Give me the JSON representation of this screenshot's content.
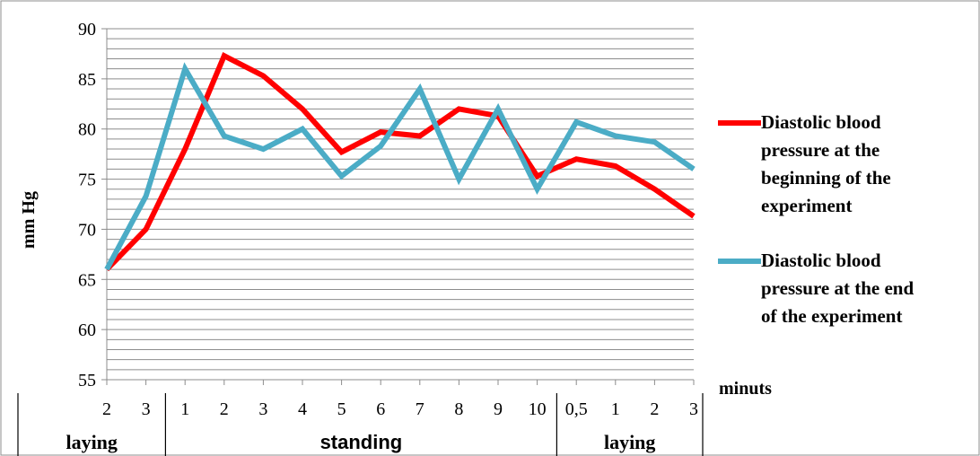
{
  "chart_data": {
    "type": "line",
    "ylabel": "mm Hg",
    "xlabel": "minuts",
    "ylim": [
      55,
      90
    ],
    "yticks": [
      55,
      60,
      65,
      70,
      75,
      80,
      85,
      90
    ],
    "y_minor_step": 1,
    "grid": true,
    "legend_position": "right",
    "categories": [
      "2",
      "3",
      "1",
      "2",
      "3",
      "4",
      "5",
      "6",
      "7",
      "8",
      "9",
      "10",
      "0,5",
      "1",
      "2",
      "3"
    ],
    "groups": [
      {
        "label": "laying",
        "start": 0,
        "end": 1
      },
      {
        "label": "standing",
        "start": 2,
        "end": 11
      },
      {
        "label": "laying",
        "start": 12,
        "end": 15
      }
    ],
    "series": [
      {
        "name": "Diastolic blood pressure at the beginning of the experiment",
        "legend_lines": [
          "Diastolic blood",
          "pressure at the",
          "beginning of the",
          "experiment"
        ],
        "color": "#ff0000",
        "values": [
          66,
          70,
          78,
          87.3,
          85.3,
          82,
          77.7,
          79.7,
          79.3,
          82,
          81.3,
          75.3,
          77,
          76.3,
          74,
          71.3
        ]
      },
      {
        "name": "Diastolic blood pressure at the end of the experiment",
        "legend_lines": [
          "Diastolic blood",
          "pressure at the end",
          "of the experiment"
        ],
        "color": "#4bacc6",
        "values": [
          66,
          73.3,
          86,
          79.3,
          78,
          80,
          75.3,
          78.3,
          84,
          75,
          82,
          74,
          80.7,
          79.3,
          78.7,
          76
        ]
      }
    ]
  }
}
